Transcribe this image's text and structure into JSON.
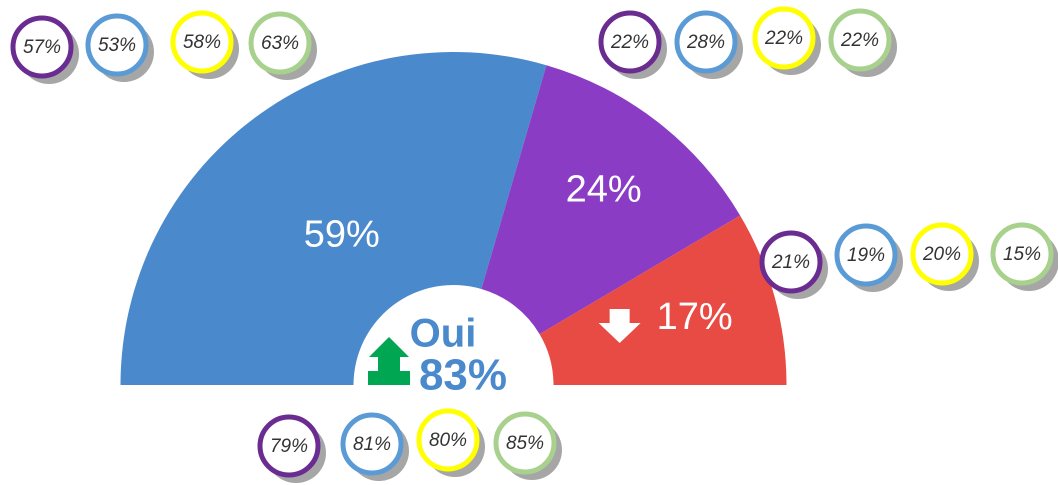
{
  "chart_data": {
    "type": "half-donut",
    "values": [
      59,
      24,
      17
    ],
    "value_labels": [
      "59%",
      "24%",
      "17%"
    ],
    "colors": [
      "#4a89cc",
      "#8b3cc4",
      "#e84a44"
    ],
    "center": {
      "label": "Oui",
      "value": 83,
      "value_label": "83%"
    },
    "badge_colors": [
      "#6a2c91",
      "#5b9bd5",
      "#ffff00",
      "#a9d18e"
    ],
    "badge_groups": [
      {
        "values": [
          57,
          53,
          58,
          63
        ],
        "value_labels": [
          "57%",
          "53%",
          "58%",
          "63%"
        ]
      },
      {
        "values": [
          22,
          28,
          22,
          22
        ],
        "value_labels": [
          "22%",
          "28%",
          "22%",
          "22%"
        ]
      },
      {
        "values": [
          21,
          19,
          20,
          15
        ],
        "value_labels": [
          "21%",
          "19%",
          "20%",
          "15%"
        ]
      },
      {
        "values": [
          79,
          81,
          80,
          85
        ],
        "value_labels": [
          "79%",
          "81%",
          "80%",
          "85%"
        ]
      }
    ]
  }
}
